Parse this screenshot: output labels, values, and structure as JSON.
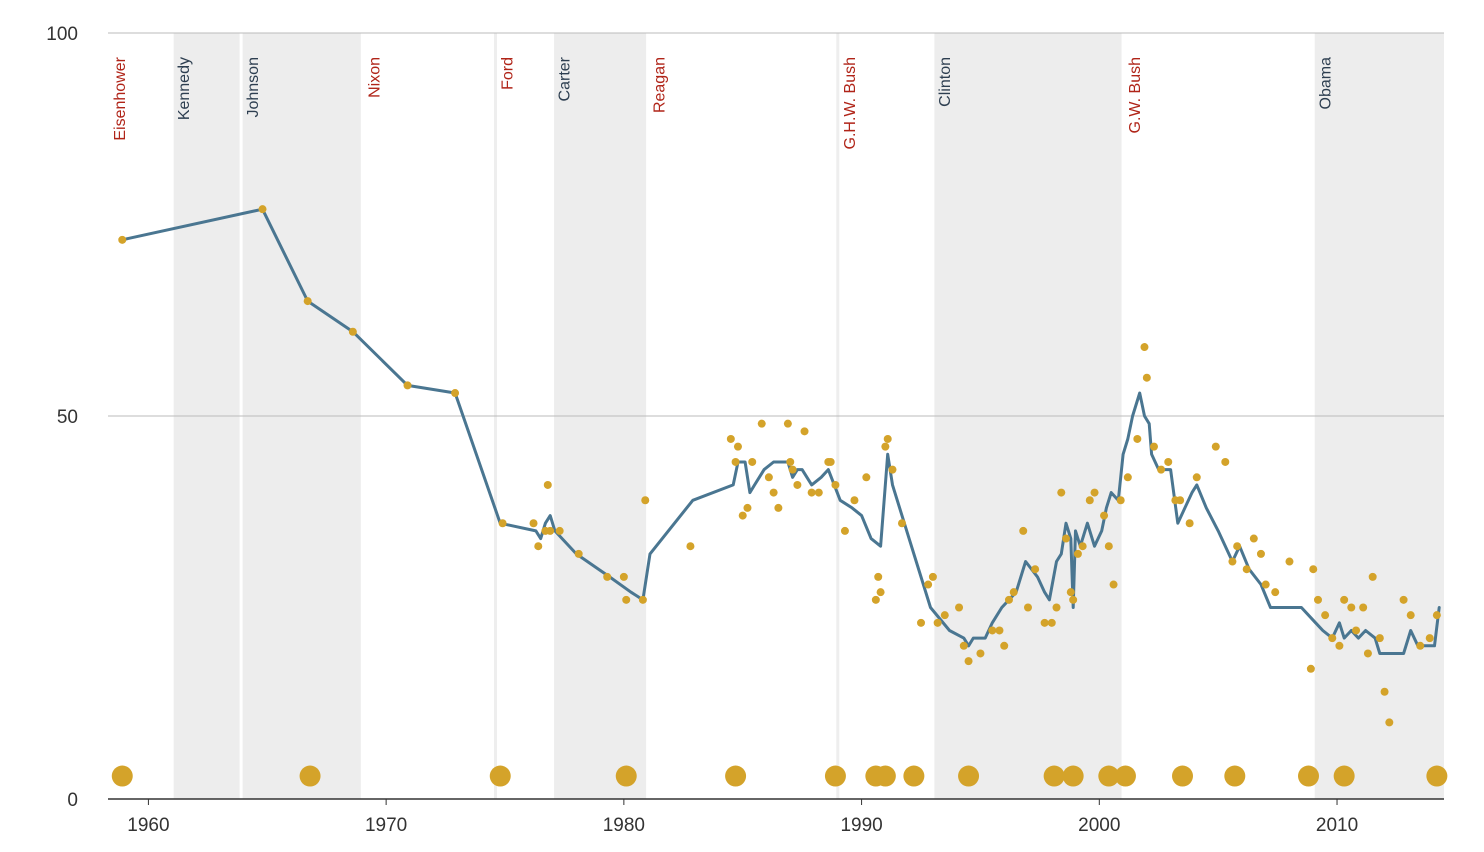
{
  "colors": {
    "republican": "#b02418",
    "democrat": "#2d3e50",
    "line": "#4a7691",
    "dot": "#d4a32a",
    "shade": "#ededed",
    "grid": "#bbbbbb",
    "axis": "#333333"
  },
  "chart_data": {
    "type": "line",
    "title": "",
    "xlabel": "",
    "ylabel": "",
    "xlim": [
      1958.3,
      2014.5
    ],
    "ylim": [
      0,
      100
    ],
    "x_ticks": [
      1960,
      1970,
      1980,
      1990,
      2000,
      2010
    ],
    "x_tick_labels": [
      "1960",
      "1970",
      "1980",
      "1990",
      "2000",
      "2010"
    ],
    "y_ticks": [
      0,
      50,
      100
    ],
    "y_tick_labels": [
      "0",
      "50",
      "100"
    ],
    "grid": true,
    "presidents": [
      {
        "name": "Eisenhower",
        "start": 1958.3,
        "end": 1961.0,
        "party": "R",
        "shaded": false
      },
      {
        "name": "Kennedy",
        "start": 1961.0,
        "end": 1963.9,
        "party": "D",
        "shaded": true
      },
      {
        "name": "Johnson",
        "start": 1963.9,
        "end": 1969.0,
        "party": "D",
        "shaded": true
      },
      {
        "name": "Nixon",
        "start": 1969.0,
        "end": 1974.6,
        "party": "R",
        "shaded": false
      },
      {
        "name": "Ford",
        "start": 1974.6,
        "end": 1977.0,
        "party": "R",
        "shaded": false
      },
      {
        "name": "Carter",
        "start": 1977.0,
        "end": 1981.0,
        "party": "D",
        "shaded": true
      },
      {
        "name": "Reagan",
        "start": 1981.0,
        "end": 1989.0,
        "party": "R",
        "shaded": false
      },
      {
        "name": "G.H.W. Bush",
        "start": 1989.0,
        "end": 1993.0,
        "party": "R",
        "shaded": false
      },
      {
        "name": "Clinton",
        "start": 1993.0,
        "end": 2001.0,
        "party": "D",
        "shaded": true
      },
      {
        "name": "G.W. Bush",
        "start": 2001.0,
        "end": 2009.0,
        "party": "R",
        "shaded": false
      },
      {
        "name": "Obama",
        "start": 2009.0,
        "end": 2014.5,
        "party": "D",
        "shaded": true
      }
    ],
    "series": [
      {
        "type": "line",
        "x": [
          1958.9,
          1964.8,
          1966.7,
          1968.6,
          1970.9,
          1972.9,
          1974.8,
          1976.3,
          1976.5,
          1976.7,
          1976.9,
          1977.1,
          1978.0,
          1979.4,
          1980.3,
          1980.8,
          1981.1,
          1982.9,
          1984.6,
          1984.8,
          1985.1,
          1985.3,
          1985.5,
          1985.9,
          1986.3,
          1986.9,
          1987.1,
          1987.3,
          1987.5,
          1987.9,
          1988.3,
          1988.6,
          1989.1,
          1989.6,
          1990.0,
          1990.4,
          1990.8,
          1991.1,
          1991.3,
          1992.0,
          1992.9,
          1993.7,
          1994.3,
          1994.5,
          1994.7,
          1995.2,
          1995.5,
          1995.9,
          1996.2,
          1996.5,
          1996.9,
          1997.4,
          1997.7,
          1997.9,
          1998.2,
          1998.4,
          1998.6,
          1998.8,
          1998.9,
          1999.0,
          1999.2,
          1999.5,
          1999.8,
          2000.1,
          2000.3,
          2000.5,
          2000.8,
          2001.0,
          2001.2,
          2001.4,
          2001.7,
          2001.9,
          2002.1,
          2002.2,
          2002.5,
          2002.8,
          2003.0,
          2003.3,
          2003.6,
          2003.9,
          2004.1,
          2004.5,
          2005.0,
          2005.6,
          2005.9,
          2006.3,
          2006.8,
          2007.2,
          2007.6,
          2008.0,
          2008.5,
          2009.1,
          2009.4,
          2009.8,
          2010.1,
          2010.3,
          2010.6,
          2010.9,
          2011.2,
          2011.6,
          2011.8,
          2012.0,
          2012.4,
          2012.8,
          2013.1,
          2013.4,
          2013.7,
          2014.1,
          2014.3
        ],
        "y": [
          73,
          77,
          65,
          61,
          54,
          53,
          36,
          35,
          34,
          36,
          37,
          35,
          32,
          29,
          27,
          26,
          32,
          39,
          41,
          44,
          44,
          40,
          41,
          43,
          44,
          44,
          42,
          43,
          43,
          41,
          42,
          43,
          39,
          38,
          37,
          34,
          33,
          45,
          41,
          34,
          25,
          22,
          21,
          20,
          21,
          21,
          23,
          25,
          26,
          27,
          31,
          29,
          27,
          26,
          31,
          32,
          36,
          34,
          25,
          35,
          33,
          36,
          33,
          35,
          38,
          40,
          39,
          45,
          47,
          50,
          53,
          50,
          49,
          45,
          43,
          43,
          43,
          36,
          38,
          40,
          41,
          38,
          35,
          31,
          33,
          30,
          28,
          25,
          25,
          25,
          25,
          23,
          22,
          21,
          23,
          21,
          22,
          21,
          22,
          21,
          19,
          19,
          19,
          19,
          22,
          20,
          20,
          20,
          25
        ]
      },
      {
        "type": "scatter",
        "x": [
          1958.9,
          1964.8,
          1966.7,
          1968.6,
          1970.9,
          1972.9,
          1974.9,
          1976.2,
          1976.4,
          1976.7,
          1976.8,
          1976.9,
          1977.3,
          1978.1,
          1979.3,
          1980.0,
          1980.1,
          1980.8,
          1980.9,
          1982.8,
          1984.5,
          1984.7,
          1984.8,
          1985.0,
          1985.2,
          1985.4,
          1985.8,
          1986.1,
          1986.3,
          1986.5,
          1986.9,
          1987.0,
          1987.1,
          1987.3,
          1987.6,
          1987.9,
          1988.2,
          1988.6,
          1988.7,
          1988.9,
          1989.3,
          1989.7,
          1990.2,
          1990.6,
          1990.7,
          1990.8,
          1991.0,
          1991.1,
          1991.3,
          1991.7,
          1992.5,
          1992.8,
          1993.0,
          1993.2,
          1993.5,
          1994.1,
          1994.3,
          1994.5,
          1995.0,
          1995.5,
          1995.8,
          1996.0,
          1996.2,
          1996.4,
          1996.8,
          1997.0,
          1997.3,
          1997.7,
          1998.0,
          1998.2,
          1998.4,
          1998.6,
          1998.8,
          1998.9,
          1999.1,
          1999.3,
          1999.6,
          1999.8,
          2000.2,
          2000.4,
          2000.6,
          2000.9,
          2001.2,
          2001.6,
          2001.9,
          2002.0,
          2002.3,
          2002.6,
          2002.9,
          2003.2,
          2003.4,
          2003.8,
          2004.1,
          2004.9,
          2005.3,
          2005.6,
          2005.8,
          2006.2,
          2006.5,
          2006.8,
          2007.0,
          2007.4,
          2008.0,
          2008.9,
          2009.0,
          2009.2,
          2009.5,
          2009.8,
          2010.1,
          2010.3,
          2010.6,
          2010.8,
          2011.1,
          2011.3,
          2011.5,
          2011.8,
          2012.0,
          2012.2,
          2012.8,
          2013.1,
          2013.5,
          2013.9,
          2014.2
        ],
        "y": [
          73,
          77,
          65,
          61,
          54,
          53,
          36,
          36,
          33,
          35,
          41,
          35,
          35,
          32,
          29,
          29,
          26,
          26,
          39,
          33,
          47,
          44,
          46,
          37,
          38,
          44,
          49,
          42,
          40,
          38,
          49,
          44,
          43,
          41,
          48,
          40,
          40,
          44,
          44,
          41,
          35,
          39,
          42,
          26,
          29,
          27,
          46,
          47,
          43,
          36,
          23,
          28,
          29,
          23,
          24,
          25,
          20,
          18,
          19,
          22,
          22,
          20,
          26,
          27,
          35,
          25,
          30,
          23,
          23,
          25,
          40,
          34,
          27,
          26,
          32,
          33,
          39,
          40,
          37,
          33,
          28,
          39,
          42,
          47,
          59,
          55,
          46,
          43,
          44,
          39,
          39,
          36,
          42,
          46,
          44,
          31,
          33,
          30,
          34,
          32,
          28,
          27,
          31,
          17,
          30,
          26,
          24,
          21,
          20,
          26,
          25,
          22,
          25,
          19,
          29,
          21,
          14,
          10,
          26,
          24,
          20,
          21,
          24
        ]
      },
      {
        "type": "markers",
        "x": [
          1958.9,
          1966.8,
          1974.8,
          1980.1,
          1984.7,
          1988.9,
          1990.6,
          1991.0,
          1992.2,
          1994.5,
          1998.1,
          1998.9,
          2000.4,
          2001.1,
          2003.5,
          2005.7,
          2008.8,
          2010.3,
          2014.2
        ],
        "y": [
          3,
          3,
          3,
          3,
          3,
          3,
          3,
          3,
          3,
          3,
          3,
          3,
          3,
          3,
          3,
          3,
          3,
          3,
          3
        ]
      }
    ]
  }
}
